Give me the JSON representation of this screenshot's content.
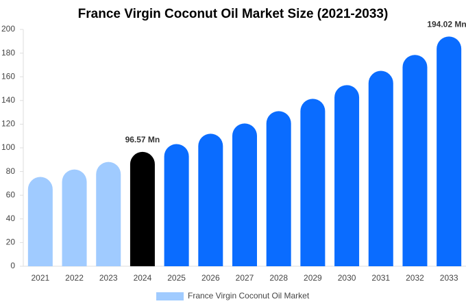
{
  "chart_data": {
    "type": "bar",
    "title": "France Virgin Coconut Oil Market Size (2021-2033)",
    "categories": [
      "2021",
      "2022",
      "2023",
      "2024",
      "2025",
      "2026",
      "2027",
      "2028",
      "2029",
      "2030",
      "2031",
      "2032",
      "2033"
    ],
    "series": [
      {
        "name": "France Virgin Coconut Oil Market",
        "color": "#a0cbff",
        "values": [
          75.4,
          81.7,
          88.1,
          96.57,
          103.2,
          111.9,
          120.6,
          131,
          141.4,
          153,
          165,
          178.5,
          194.02
        ],
        "value_labels": [
          null,
          null,
          null,
          "96.57 Mn",
          null,
          null,
          null,
          null,
          null,
          null,
          null,
          null,
          "194.02 Mn"
        ],
        "colors": [
          "#a0cbff",
          "#a0cbff",
          "#a0cbff",
          "#000000",
          "#0a6cff",
          "#0a6cff",
          "#0a6cff",
          "#0a6cff",
          "#0a6cff",
          "#0a6cff",
          "#0a6cff",
          "#0a6cff",
          "#0a6cff"
        ]
      }
    ],
    "ylim": [
      0,
      200
    ],
    "yticks": [
      0,
      20,
      40,
      60,
      80,
      100,
      120,
      140,
      160,
      180,
      200
    ],
    "grid": false
  }
}
